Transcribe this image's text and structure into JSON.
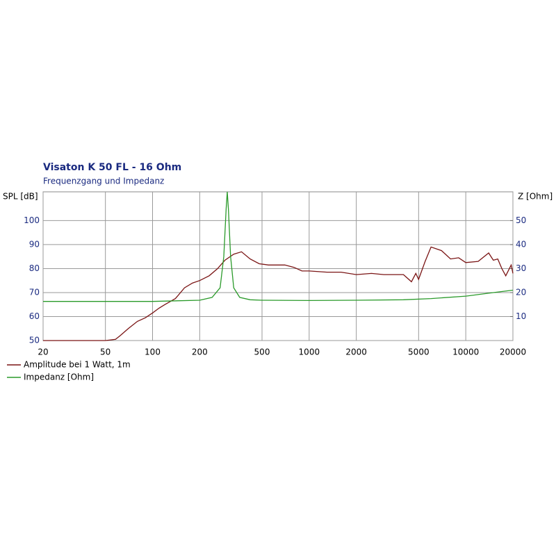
{
  "chart_data": {
    "type": "line",
    "title": "Visaton K 50 FL - 16 Ohm",
    "subtitle": "Frequenzgang und Impedanz",
    "y_label": "SPL [dB]",
    "y2_label": "Z [Ohm]",
    "log_x": true,
    "grid": true,
    "xlim": [
      20,
      20000
    ],
    "xticks": [
      20,
      50,
      100,
      200,
      500,
      1000,
      2000,
      5000,
      10000,
      20000
    ],
    "ylim": [
      50,
      112
    ],
    "yticks": [
      50,
      60,
      70,
      80,
      90,
      100
    ],
    "y2lim": [
      0,
      62
    ],
    "y2ticks": [
      10,
      20,
      30,
      40,
      50
    ],
    "series": [
      {
        "name": "Amplitude bei 1 Watt, 1m",
        "color": "#7a1414",
        "x": [
          20,
          50,
          58,
          62,
          70,
          80,
          90,
          100,
          110,
          120,
          140,
          160,
          180,
          200,
          230,
          260,
          290,
          330,
          370,
          420,
          480,
          550,
          700,
          800,
          900,
          1000,
          1300,
          1600,
          2000,
          2500,
          3000,
          4000,
          4500,
          4800,
          5000,
          5500,
          6000,
          7000,
          8000,
          9000,
          10000,
          12000,
          14000,
          15000,
          16000,
          17000,
          18000,
          19500,
          20000
        ],
        "values": [
          50,
          50,
          50.5,
          52,
          55,
          58,
          59.5,
          61.5,
          63.5,
          65,
          67.5,
          72,
          74,
          75,
          77,
          80,
          83.5,
          86,
          87,
          84,
          82,
          81.5,
          81.5,
          80.5,
          79,
          79,
          78.5,
          78.5,
          77.5,
          78,
          77.5,
          77.5,
          74.5,
          78,
          75.5,
          83,
          89,
          87.5,
          84,
          84.5,
          82.5,
          83,
          86.5,
          83.5,
          84,
          80,
          77,
          81.5,
          78
        ]
      },
      {
        "name": "Impedanz [Ohm]",
        "color": "#2a9a2a",
        "axis": "y2",
        "x": [
          20,
          100,
          200,
          240,
          270,
          285,
          295,
          300,
          305,
          315,
          330,
          360,
          420,
          500,
          1000,
          2000,
          4000,
          6000,
          10000,
          15000,
          20000
        ],
        "values": [
          16.3,
          16.3,
          16.8,
          18,
          22,
          35,
          55,
          62,
          55,
          35,
          22,
          18,
          17,
          16.8,
          16.7,
          16.8,
          17,
          17.5,
          18.5,
          20,
          21
        ]
      }
    ]
  }
}
